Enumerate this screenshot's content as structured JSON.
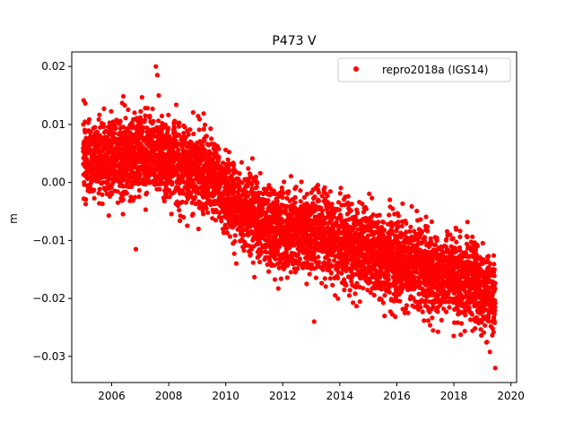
{
  "chart_data": {
    "type": "scatter",
    "title": "P473 V",
    "xlabel": "",
    "ylabel": "m",
    "xlim": [
      2004.6,
      2020.2
    ],
    "ylim": [
      -0.0345,
      0.0225
    ],
    "xticks": [
      2006,
      2008,
      2010,
      2012,
      2014,
      2016,
      2018,
      2020
    ],
    "xtick_labels": [
      "2006",
      "2008",
      "2010",
      "2012",
      "2014",
      "2016",
      "2018",
      "2020"
    ],
    "yticks": [
      0.02,
      0.01,
      0.0,
      -0.01,
      -0.02,
      -0.03
    ],
    "ytick_labels": [
      "0.02",
      "0.01",
      "0.00",
      "−0.01",
      "−0.02",
      "−0.03"
    ],
    "grid": false,
    "legend_position": "top-right",
    "series": [
      {
        "name": "repro2018a (IGS14)",
        "color": "#ff0000",
        "marker": "circle",
        "x_range": [
          2005.0,
          2019.45
        ],
        "trend": [
          {
            "x": 2005.0,
            "y": 0.004
          },
          {
            "x": 2007.0,
            "y": 0.005
          },
          {
            "x": 2009.5,
            "y": 0.0015
          },
          {
            "x": 2010.5,
            "y": -0.005
          },
          {
            "x": 2012.0,
            "y": -0.0085
          },
          {
            "x": 2013.5,
            "y": -0.009
          },
          {
            "x": 2015.0,
            "y": -0.012
          },
          {
            "x": 2017.0,
            "y": -0.015
          },
          {
            "x": 2018.5,
            "y": -0.017
          },
          {
            "x": 2019.45,
            "y": -0.02
          }
        ],
        "spread_sd": 0.0035,
        "noted_points": [
          {
            "x": 2007.55,
            "y": 0.02
          },
          {
            "x": 2007.6,
            "y": 0.0185
          },
          {
            "x": 2007.65,
            "y": 0.015
          },
          {
            "x": 2006.85,
            "y": -0.0115
          },
          {
            "x": 2013.1,
            "y": -0.024
          },
          {
            "x": 2019.45,
            "y": -0.032
          }
        ]
      }
    ]
  }
}
